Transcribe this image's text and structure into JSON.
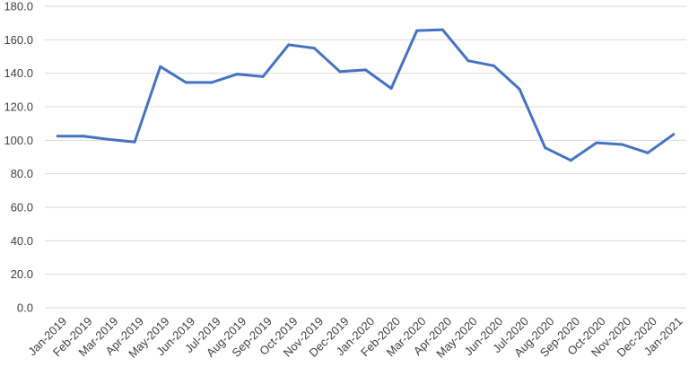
{
  "chart_data": {
    "type": "line",
    "title": "",
    "xlabel": "",
    "ylabel": "",
    "ylim": [
      0,
      180
    ],
    "y_ticks": [
      "0.0",
      "20.0",
      "40.0",
      "60.0",
      "80.0",
      "100.0",
      "120.0",
      "140.0",
      "160.0",
      "180.0"
    ],
    "grid": "horizontal",
    "legend": "none",
    "categories": [
      "Jan-2019",
      "Feb-2019",
      "Mar-2019",
      "Apr-2019",
      "May-2019",
      "Jun-2019",
      "Jul-2019",
      "Aug-2019",
      "Sep-2019",
      "Oct-2019",
      "Nov-2019",
      "Dec-2019",
      "Jan-2020",
      "Feb-2020",
      "Mar-2020",
      "Apr-2020",
      "May-2020",
      "Jun-2020",
      "Jul-2020",
      "Aug-2020",
      "Sep-2020",
      "Oct-2020",
      "Nov-2020",
      "Dec-2020",
      "Jan-2021"
    ],
    "series": [
      {
        "color": "#4472c4",
        "values": [
          102.5,
          102.5,
          100.5,
          99.0,
          144.0,
          134.5,
          134.5,
          139.5,
          138.0,
          157.0,
          155.0,
          141.0,
          142.0,
          131.0,
          165.5,
          166.0,
          147.5,
          144.5,
          130.5,
          95.5,
          88.0,
          98.5,
          97.5,
          92.5,
          103.5
        ]
      }
    ]
  }
}
